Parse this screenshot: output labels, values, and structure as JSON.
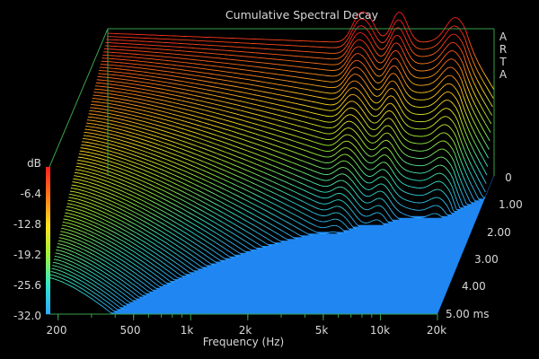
{
  "chart_data": {
    "type": "waterfall",
    "title": "Cumulative Spectral Decay",
    "brand_letters": [
      "A",
      "R",
      "T",
      "A"
    ],
    "xlabel": "Frequency (Hz)",
    "x_ticks": [
      "200",
      "500",
      "1k",
      "2k",
      "5k",
      "10k",
      "20k"
    ],
    "x_tick_values": [
      200,
      500,
      1000,
      2000,
      5000,
      10000,
      20000
    ],
    "xlim": [
      180,
      20000
    ],
    "x_scale": "log",
    "zlabel": "dB",
    "z_ticks": [
      "-6.4",
      "-12.8",
      "-19.2",
      "-25.6",
      "-32.0"
    ],
    "zlim": [
      -32.0,
      0
    ],
    "y_ticks": [
      "0",
      "1.00",
      "2.00",
      "3.00",
      "4.00",
      "5.00 ms"
    ],
    "y_tick_values": [
      0,
      1,
      2,
      3,
      4,
      5
    ],
    "ylim": [
      0,
      5
    ],
    "y_unit": "ms",
    "slice_count": 80,
    "floor_color": "#1f86f2",
    "frame_color": "#3aa14a",
    "colormap": [
      "#ff1f1f",
      "#ff7a1a",
      "#ffe21c",
      "#9cf23a",
      "#32e6c9",
      "#2fa9ff"
    ]
  }
}
